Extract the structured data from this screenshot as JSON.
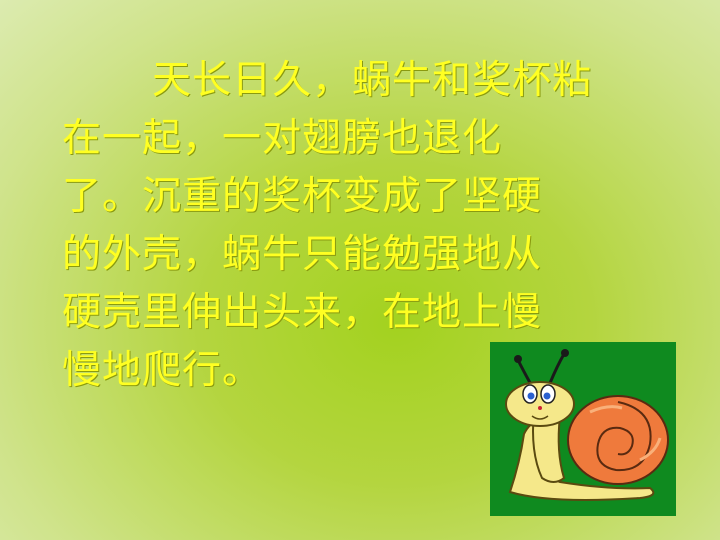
{
  "text_lines": [
    "天长日久，蜗牛和奖杯粘",
    "在一起，一对翅膀也退化",
    "了。沉重的奖杯变成了坚硬",
    "的外壳，蜗牛只能勉强地从",
    "硬壳里伸出头来，在地上慢",
    "慢地爬行。"
  ],
  "colors": {
    "text": "#ffff22",
    "image_background": "#0f8a1f",
    "shell": "#ef7a3c",
    "body": "#f5e88a"
  },
  "illustration": "snail-cartoon"
}
